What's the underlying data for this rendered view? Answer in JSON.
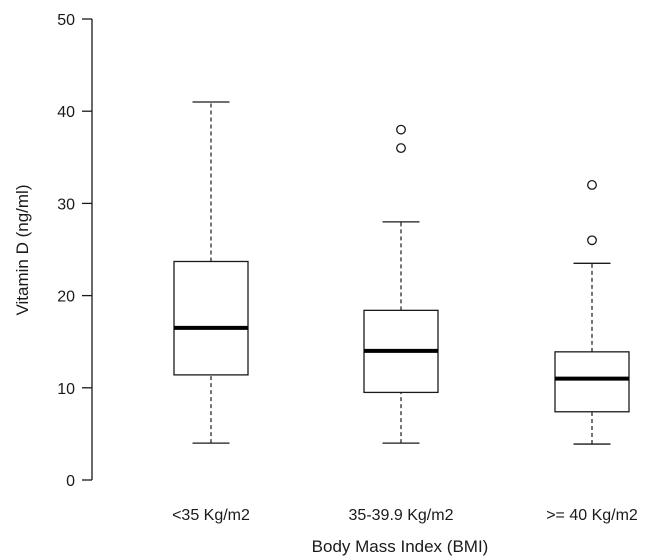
{
  "chart_data": {
    "type": "box",
    "title": "",
    "xlabel": "Body Mass Index (BMI)",
    "ylabel": "Vitamin D (ng/ml)",
    "ylim": [
      0,
      50
    ],
    "yticks": [
      0,
      10,
      20,
      30,
      40,
      50
    ],
    "grid": false,
    "categories": [
      "<35 Kg/m2",
      "35-39.9 Kg/m2",
      ">= 40 Kg/m2"
    ],
    "boxes": [
      {
        "category": "<35 Kg/m2",
        "whisker_low": 4,
        "q1": 11.4,
        "median": 16.5,
        "q3": 23.7,
        "whisker_high": 41,
        "outliers": []
      },
      {
        "category": "35-39.9 Kg/m2",
        "whisker_low": 4,
        "q1": 9.5,
        "median": 14,
        "q3": 18.4,
        "whisker_high": 28,
        "outliers": [
          36,
          38
        ]
      },
      {
        "category": ">= 40 Kg/m2",
        "whisker_low": 3.9,
        "q1": 7.4,
        "median": 11,
        "q3": 13.9,
        "whisker_high": 23.5,
        "outliers": [
          26,
          32
        ]
      }
    ]
  }
}
